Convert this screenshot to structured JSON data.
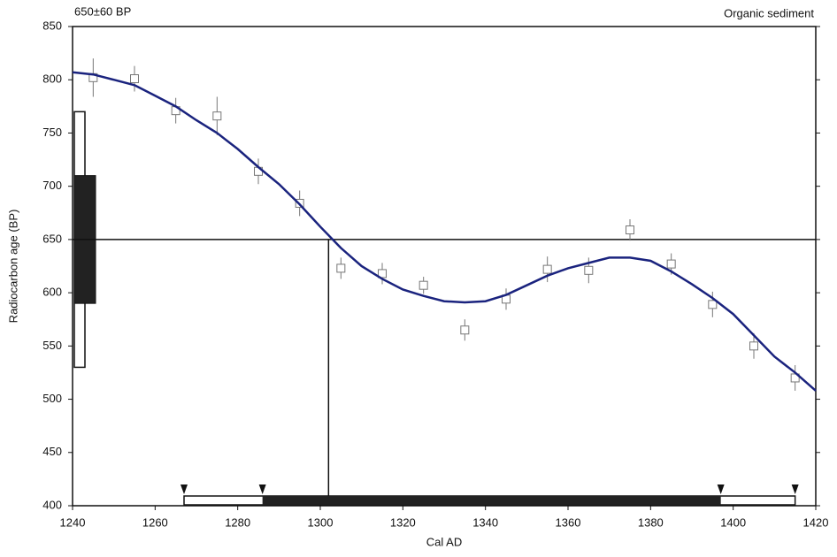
{
  "chart_data": {
    "type": "calibration",
    "title": "650±60 BP",
    "subtitle": "Organic sediment",
    "x_label": "Cal AD",
    "y_label": "Radiocarbon age (BP)",
    "xlim": [
      1240,
      1420
    ],
    "xticks": [
      1240,
      1260,
      1280,
      1300,
      1320,
      1340,
      1360,
      1380,
      1400,
      1420
    ],
    "ylim": [
      400,
      850
    ],
    "yticks": [
      400,
      450,
      500,
      550,
      600,
      650,
      700,
      750,
      800,
      850
    ],
    "curve": {
      "color": "#1a237e",
      "x": [
        1240,
        1245,
        1250,
        1255,
        1260,
        1265,
        1270,
        1275,
        1280,
        1285,
        1290,
        1295,
        1300,
        1305,
        1310,
        1315,
        1320,
        1325,
        1330,
        1335,
        1340,
        1345,
        1350,
        1355,
        1360,
        1365,
        1370,
        1375,
        1380,
        1385,
        1390,
        1395,
        1400,
        1405,
        1410,
        1415,
        1420
      ],
      "values": [
        807,
        805,
        800,
        795,
        785,
        775,
        762,
        750,
        735,
        718,
        702,
        683,
        662,
        642,
        625,
        613,
        603,
        597,
        592,
        591,
        592,
        598,
        607,
        616,
        623,
        628,
        633,
        633,
        630,
        620,
        608,
        595,
        580,
        560,
        540,
        525,
        508
      ]
    },
    "points": {
      "color": "#777777",
      "x": [
        1245,
        1255,
        1265,
        1275,
        1285,
        1295,
        1305,
        1315,
        1325,
        1335,
        1345,
        1355,
        1365,
        1375,
        1385,
        1395,
        1405,
        1415
      ],
      "values": [
        802,
        801,
        771,
        766,
        714,
        684,
        623,
        618,
        607,
        565,
        594,
        622,
        621,
        659,
        627,
        589,
        550,
        520
      ],
      "errors": [
        18,
        12,
        12,
        18,
        12,
        12,
        10,
        10,
        8,
        10,
        10,
        12,
        12,
        10,
        10,
        12,
        12,
        12
      ]
    },
    "age": 650,
    "intercept": 1302,
    "one_sigma": {
      "age": [
        590,
        710
      ],
      "cal": [
        1286,
        1397
      ]
    },
    "two_sigma": {
      "age": [
        530,
        770
      ],
      "cal": [
        1267,
        1415
      ]
    }
  }
}
